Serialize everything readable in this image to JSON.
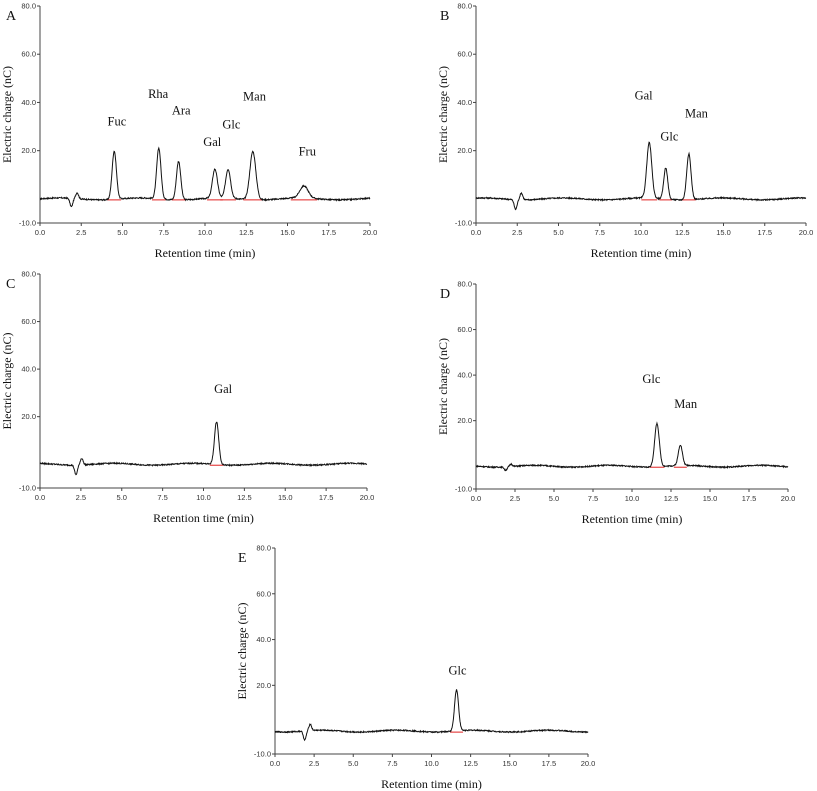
{
  "chart_data": [
    {
      "type": "line",
      "panel": "A",
      "xlabel": "Retention time (min)",
      "ylabel": "Electric charge (nC)",
      "xlim": [
        0,
        20
      ],
      "ylim": [
        -10,
        80
      ],
      "xticks": [
        "0.0",
        "2.5",
        "5.0",
        "7.5",
        "10.0",
        "12.5",
        "15.0",
        "17.5",
        "20.0"
      ],
      "yticks": [
        "-10.0",
        "20.0",
        "40.0",
        "60.0",
        "80.0"
      ],
      "baseline": 0,
      "dip": {
        "x": 1.9,
        "y": -3.5
      },
      "peaks": [
        {
          "name": "Fuc",
          "x": 4.5,
          "y": 20,
          "width": 0.13
        },
        {
          "name": "Rha",
          "x": 7.2,
          "y": 21,
          "width": 0.13
        },
        {
          "name": "Ara",
          "x": 8.4,
          "y": 16,
          "width": 0.13
        },
        {
          "name": "Gal",
          "x": 10.6,
          "y": 12,
          "width": 0.15
        },
        {
          "name": "Glc",
          "x": 11.4,
          "y": 12,
          "width": 0.15
        },
        {
          "name": "Man",
          "x": 12.9,
          "y": 20,
          "width": 0.18
        },
        {
          "name": "Fru",
          "x": 16.0,
          "y": 5,
          "width": 0.25
        }
      ]
    },
    {
      "type": "line",
      "panel": "B",
      "xlabel": "Retention time (min)",
      "ylabel": "Electric charge (nC)",
      "xlim": [
        0,
        20
      ],
      "ylim": [
        -10,
        80
      ],
      "xticks": [
        "0.0",
        "2.5",
        "5.0",
        "7.5",
        "10.0",
        "12.5",
        "15.0",
        "17.5",
        "20.0"
      ],
      "yticks": [
        "-10.0",
        "20.0",
        "40.0",
        "60.0",
        "80.0"
      ],
      "baseline": 0,
      "dip": {
        "x": 2.4,
        "y": -4
      },
      "peaks": [
        {
          "name": "Gal",
          "x": 10.5,
          "y": 23,
          "width": 0.15
        },
        {
          "name": "Glc",
          "x": 11.5,
          "y": 13,
          "width": 0.12
        },
        {
          "name": "Man",
          "x": 12.9,
          "y": 19,
          "width": 0.13
        }
      ]
    },
    {
      "type": "line",
      "panel": "C",
      "xlabel": "Retention time (min)",
      "ylabel": "Electric charge (nC)",
      "xlim": [
        0,
        20
      ],
      "ylim": [
        -10,
        80
      ],
      "xticks": [
        "0.0",
        "2.5",
        "5.0",
        "7.5",
        "10.0",
        "12.5",
        "15.0",
        "17.5",
        "20.0"
      ],
      "yticks": [
        "-10.0",
        "20.0",
        "40.0",
        "60.0",
        "80.0"
      ],
      "baseline": 0,
      "dip": {
        "x": 2.2,
        "y": -4
      },
      "peaks": [
        {
          "name": "Gal",
          "x": 10.8,
          "y": 18,
          "width": 0.13
        }
      ]
    },
    {
      "type": "line",
      "panel": "D",
      "xlabel": "Retention time (min)",
      "ylabel": "Electric charge (nC)",
      "xlim": [
        0,
        20
      ],
      "ylim": [
        -10,
        80
      ],
      "xticks": [
        "0.0",
        "2.5",
        "5.0",
        "7.5",
        "10.0",
        "12.5",
        "15.0",
        "17.5",
        "20.0"
      ],
      "yticks": [
        "-10.0",
        "20.0",
        "40.0",
        "60.0",
        "80.0"
      ],
      "baseline": 0,
      "dip": {
        "x": 1.9,
        "y": -1.5
      },
      "peaks": [
        {
          "name": "Glc",
          "x": 11.6,
          "y": 19,
          "width": 0.15
        },
        {
          "name": "Man",
          "x": 13.1,
          "y": 9,
          "width": 0.13
        }
      ]
    },
    {
      "type": "line",
      "panel": "E",
      "xlabel": "Retention time (min)",
      "ylabel": "Electric charge (nC)",
      "xlim": [
        0,
        20
      ],
      "ylim": [
        -10,
        80
      ],
      "xticks": [
        "0.0",
        "2.5",
        "5.0",
        "7.5",
        "10.0",
        "12.5",
        "15.0",
        "17.5",
        "20.0"
      ],
      "yticks": [
        "-10.0",
        "20.0",
        "40.0",
        "60.0",
        "80.0"
      ],
      "baseline": 0,
      "dip": {
        "x": 1.9,
        "y": -4
      },
      "peaks": [
        {
          "name": "Glc",
          "x": 11.6,
          "y": 18,
          "width": 0.13
        }
      ]
    }
  ]
}
